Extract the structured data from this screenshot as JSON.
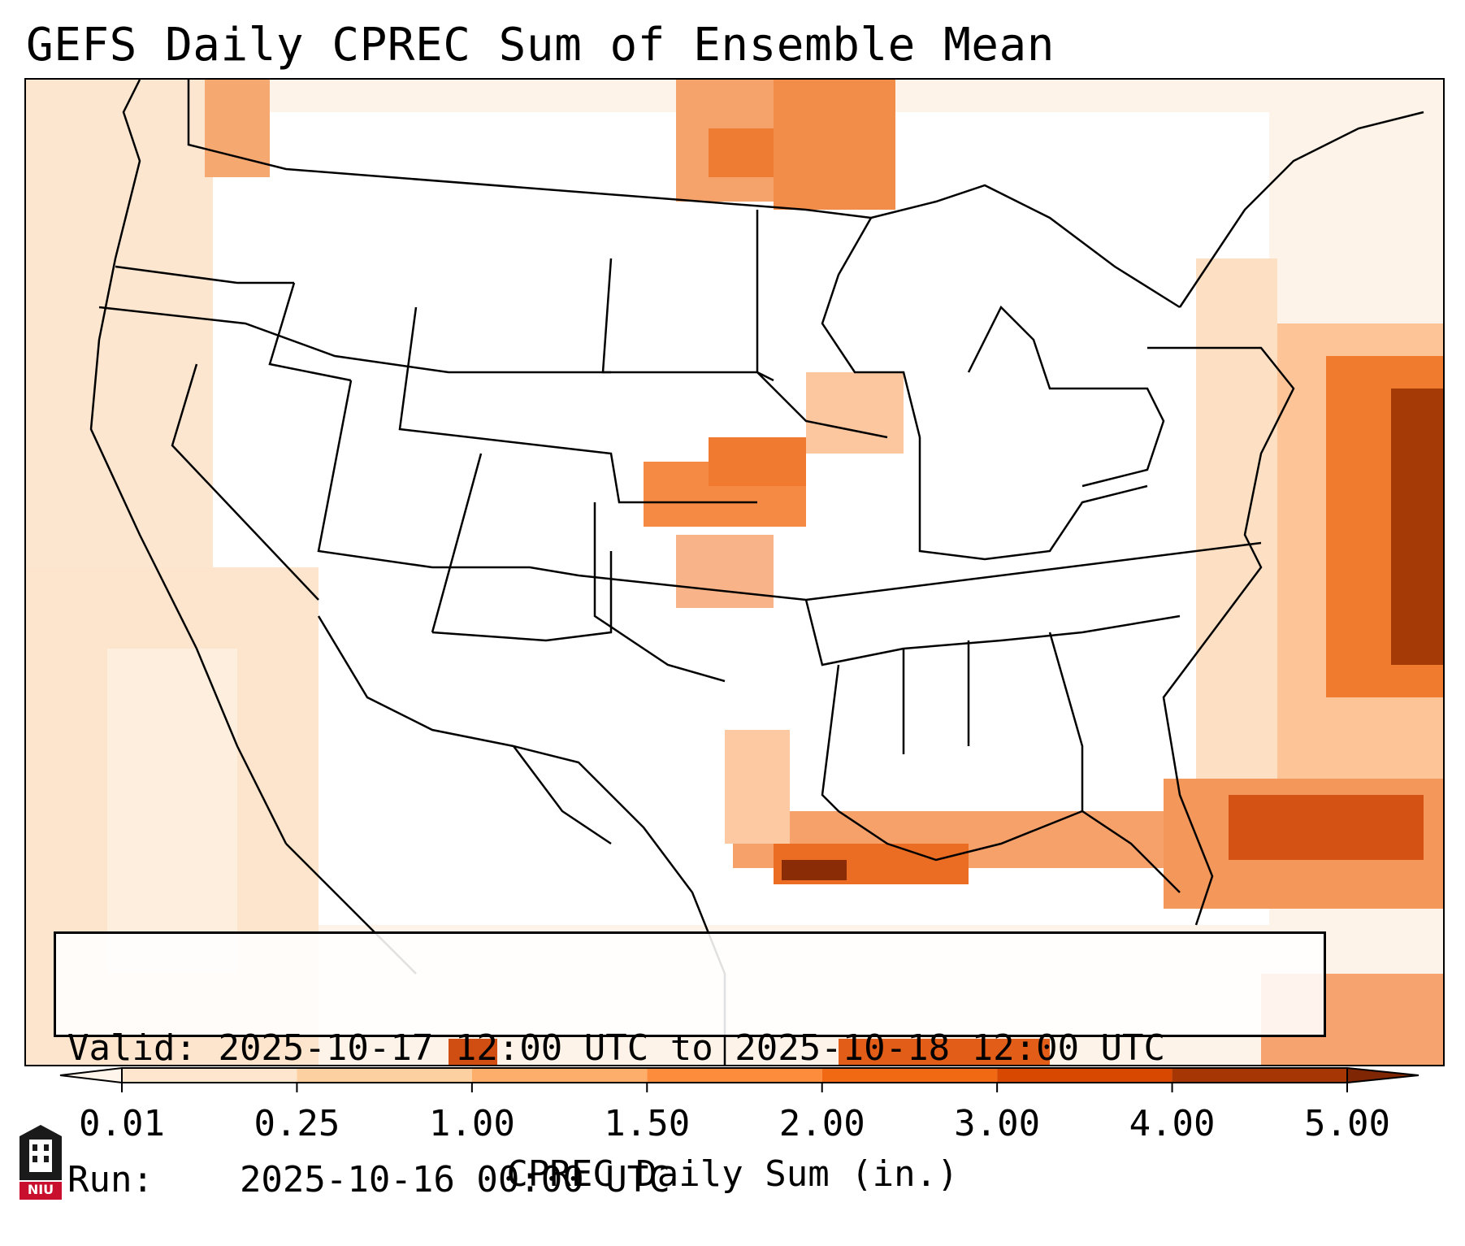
{
  "title": "GEFS Daily CPREC Sum of Ensemble Mean",
  "info": {
    "valid_label": "Valid:",
    "valid_value": "2025-10-17 12:00 UTC to 2025-10-18 12:00 UTC",
    "run_label": "Run:",
    "run_value": "2025-10-16 00:00 UTC"
  },
  "colorbar": {
    "label": "CPREC Daily Sum (in.)",
    "ticks": [
      "0.01",
      "0.25",
      "1.00",
      "1.50",
      "2.00",
      "3.00",
      "4.00",
      "5.00"
    ],
    "colors": [
      "#fff5eb",
      "#fee6ce",
      "#fdd0a2",
      "#fdae6b",
      "#fd8d3c",
      "#f16913",
      "#d94801",
      "#a63603",
      "#7f2704"
    ]
  },
  "logo": {
    "text": "NIU",
    "color": "#c8102e"
  }
}
